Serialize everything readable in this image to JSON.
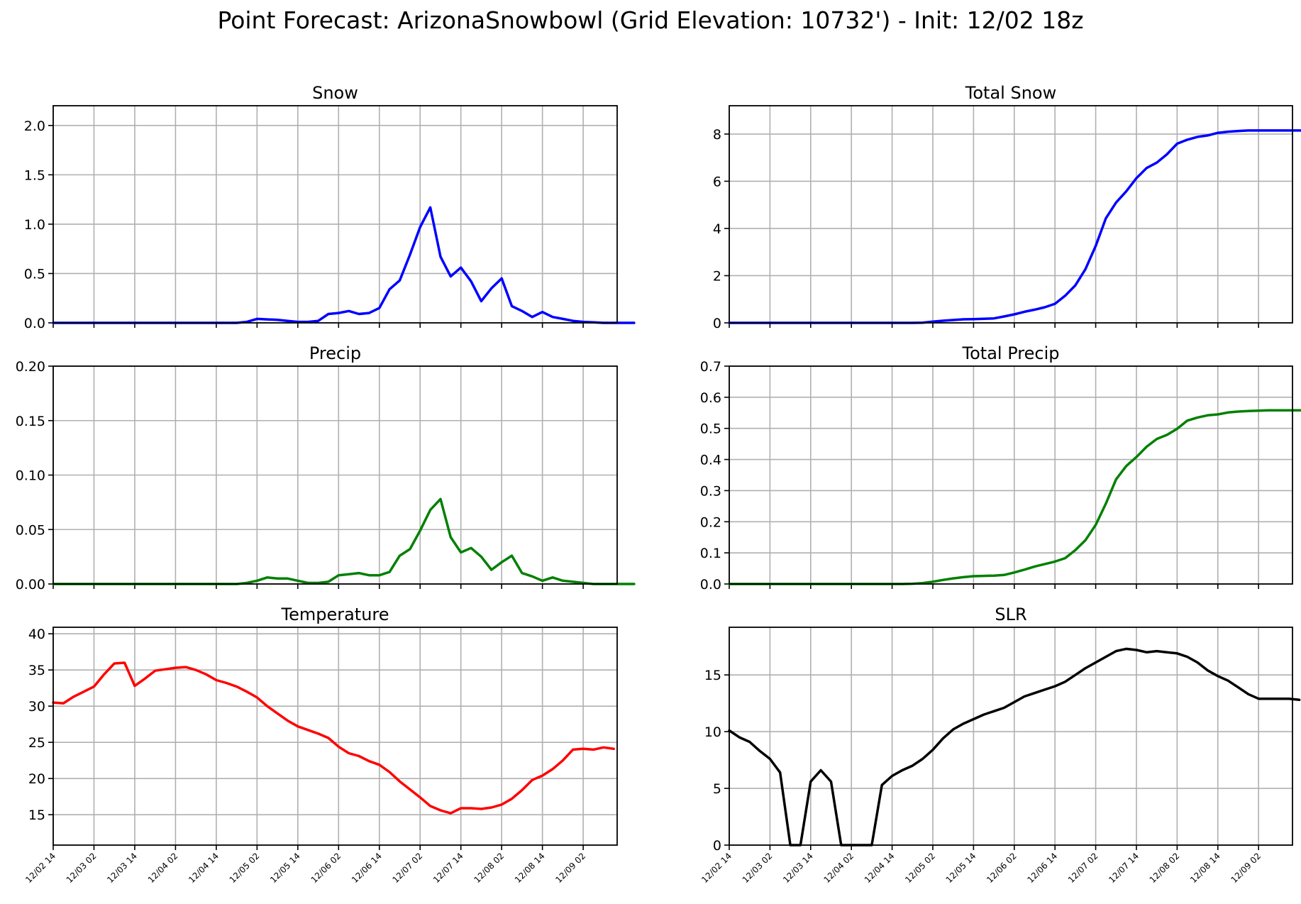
{
  "suptitle": "Point Forecast: ArizonaSnowbowl (Grid Elevation: 10732') - Init: 12/02 18z",
  "x_tick_labels": [
    "12/02 14",
    "12/03 02",
    "12/03 14",
    "12/04 02",
    "12/04 14",
    "12/05 02",
    "12/05 14",
    "12/06 02",
    "12/06 14",
    "12/07 02",
    "12/07 14",
    "12/08 02",
    "12/08 14",
    "12/09 02"
  ],
  "chart_data": [
    {
      "id": "snow",
      "type": "line",
      "title": "Snow",
      "color": "#0000ff",
      "ylim": [
        0,
        2.2
      ],
      "yticks": [
        0.0,
        0.5,
        1.0,
        1.5,
        2.0
      ],
      "ytick_labels": [
        "0.0",
        "0.5",
        "1.0",
        "1.5",
        "2.0"
      ],
      "xlim": [
        0,
        166
      ],
      "x_step_hours": 3,
      "grid": true,
      "values": [
        0,
        0,
        0,
        0,
        0,
        0,
        0,
        0,
        0,
        0,
        0,
        0,
        0,
        0,
        0,
        0,
        0,
        0,
        0,
        0.01,
        0.04,
        0.035,
        0.03,
        0.02,
        0.01,
        0.01,
        0.02,
        0.09,
        0.1,
        0.12,
        0.09,
        0.1,
        0.15,
        0.34,
        0.43,
        0.69,
        0.97,
        1.17,
        0.67,
        0.47,
        0.56,
        0.42,
        0.22,
        0.35,
        0.45,
        0.17,
        0.12,
        0.06,
        0.11,
        0.06,
        0.04,
        0.02,
        0.01,
        0.005,
        0,
        0,
        0,
        0
      ]
    },
    {
      "id": "total-snow",
      "type": "line",
      "title": "Total Snow",
      "color": "#0000ff",
      "ylim": [
        0,
        9.2
      ],
      "yticks": [
        0,
        2,
        4,
        6,
        8
      ],
      "ytick_labels": [
        "0",
        "2",
        "4",
        "6",
        "8"
      ],
      "xlim": [
        0,
        166
      ],
      "x_step_hours": 3,
      "grid": true,
      "values": [
        0,
        0,
        0,
        0,
        0,
        0,
        0,
        0,
        0,
        0,
        0,
        0,
        0,
        0,
        0,
        0,
        0,
        0,
        0,
        0.01,
        0.05,
        0.09,
        0.12,
        0.15,
        0.16,
        0.17,
        0.19,
        0.27,
        0.36,
        0.47,
        0.56,
        0.66,
        0.81,
        1.15,
        1.59,
        2.28,
        3.26,
        4.43,
        5.1,
        5.57,
        6.13,
        6.56,
        6.79,
        7.14,
        7.59,
        7.76,
        7.88,
        7.94,
        8.05,
        8.1,
        8.13,
        8.15,
        8.15,
        8.15,
        8.15,
        8.15,
        8.15,
        8.15
      ]
    },
    {
      "id": "precip",
      "type": "line",
      "title": "Precip",
      "color": "#008000",
      "ylim": [
        0,
        0.2
      ],
      "yticks": [
        0.0,
        0.05,
        0.1,
        0.15,
        0.2
      ],
      "ytick_labels": [
        "0.00",
        "0.05",
        "0.10",
        "0.15",
        "0.20"
      ],
      "xlim": [
        0,
        166
      ],
      "x_step_hours": 3,
      "grid": true,
      "values": [
        0,
        0,
        0,
        0,
        0,
        0,
        0,
        0,
        0,
        0,
        0,
        0,
        0,
        0,
        0,
        0,
        0,
        0,
        0,
        0.001,
        0.003,
        0.006,
        0.005,
        0.005,
        0.003,
        0.001,
        0.001,
        0.002,
        0.008,
        0.009,
        0.01,
        0.008,
        0.008,
        0.011,
        0.026,
        0.032,
        0.049,
        0.068,
        0.078,
        0.043,
        0.029,
        0.033,
        0.025,
        0.013,
        0.02,
        0.026,
        0.01,
        0.007,
        0.003,
        0.006,
        0.003,
        0.002,
        0.001,
        0,
        0,
        0,
        0,
        0
      ]
    },
    {
      "id": "total-precip",
      "type": "line",
      "title": "Total Precip",
      "color": "#008000",
      "ylim": [
        0,
        0.7
      ],
      "yticks": [
        0.0,
        0.1,
        0.2,
        0.3,
        0.4,
        0.5,
        0.6,
        0.7
      ],
      "ytick_labels": [
        "0.0",
        "0.1",
        "0.2",
        "0.3",
        "0.4",
        "0.5",
        "0.6",
        "0.7"
      ],
      "xlim": [
        0,
        166
      ],
      "x_step_hours": 3,
      "grid": true,
      "values": [
        0,
        0,
        0,
        0,
        0,
        0,
        0,
        0,
        0,
        0,
        0,
        0,
        0,
        0,
        0,
        0,
        0,
        0,
        0.001,
        0.003,
        0.007,
        0.013,
        0.018,
        0.022,
        0.025,
        0.026,
        0.027,
        0.029,
        0.037,
        0.046,
        0.056,
        0.064,
        0.072,
        0.083,
        0.109,
        0.141,
        0.19,
        0.258,
        0.336,
        0.379,
        0.408,
        0.441,
        0.466,
        0.479,
        0.499,
        0.525,
        0.535,
        0.542,
        0.545,
        0.551,
        0.554,
        0.556,
        0.557,
        0.558,
        0.558,
        0.558,
        0.558,
        0.558
      ]
    },
    {
      "id": "temperature",
      "type": "line",
      "title": "Temperature",
      "color": "#ff0000",
      "ylim": [
        10.8,
        40.9
      ],
      "yticks": [
        15,
        20,
        25,
        30,
        35,
        40
      ],
      "ytick_labels": [
        "15",
        "20",
        "25",
        "30",
        "35",
        "40"
      ],
      "xlim": [
        0,
        166
      ],
      "x_step_hours": 3,
      "grid": true,
      "values": [
        30.5,
        30.4,
        31.3,
        32.0,
        32.7,
        34.4,
        35.9,
        36.0,
        32.8,
        33.8,
        34.9,
        35.1,
        35.3,
        35.4,
        35.0,
        34.4,
        33.6,
        33.2,
        32.7,
        32.0,
        31.2,
        30.0,
        29.0,
        28.0,
        27.2,
        26.7,
        26.2,
        25.6,
        24.4,
        23.5,
        23.1,
        22.4,
        21.9,
        20.9,
        19.6,
        18.5,
        17.4,
        16.2,
        15.6,
        15.2,
        15.9,
        15.9,
        15.8,
        16.0,
        16.4,
        17.2,
        18.4,
        19.8,
        20.4,
        21.3,
        22.5,
        24.0,
        24.1,
        24.0,
        24.3,
        24.1
      ]
    },
    {
      "id": "slr",
      "type": "line",
      "title": "SLR",
      "color": "#000000",
      "ylim": [
        0,
        19.2
      ],
      "yticks": [
        0,
        5,
        10,
        15
      ],
      "ytick_labels": [
        "0",
        "5",
        "10",
        "15"
      ],
      "xlim": [
        0,
        166
      ],
      "x_step_hours": 3,
      "grid": true,
      "values": [
        10.1,
        9.5,
        9.1,
        8.3,
        7.6,
        6.4,
        0,
        0,
        5.6,
        6.6,
        5.6,
        0,
        0,
        0,
        0,
        5.3,
        6.1,
        6.6,
        7.0,
        7.6,
        8.4,
        9.4,
        10.2,
        10.7,
        11.1,
        11.5,
        11.8,
        12.1,
        12.6,
        13.1,
        13.4,
        13.7,
        14.0,
        14.4,
        15.0,
        15.6,
        16.1,
        16.6,
        17.1,
        17.3,
        17.2,
        17.0,
        17.1,
        17.0,
        16.9,
        16.6,
        16.1,
        15.4,
        14.9,
        14.5,
        13.9,
        13.3,
        12.9,
        12.9,
        12.9,
        12.9,
        12.8
      ]
    }
  ]
}
